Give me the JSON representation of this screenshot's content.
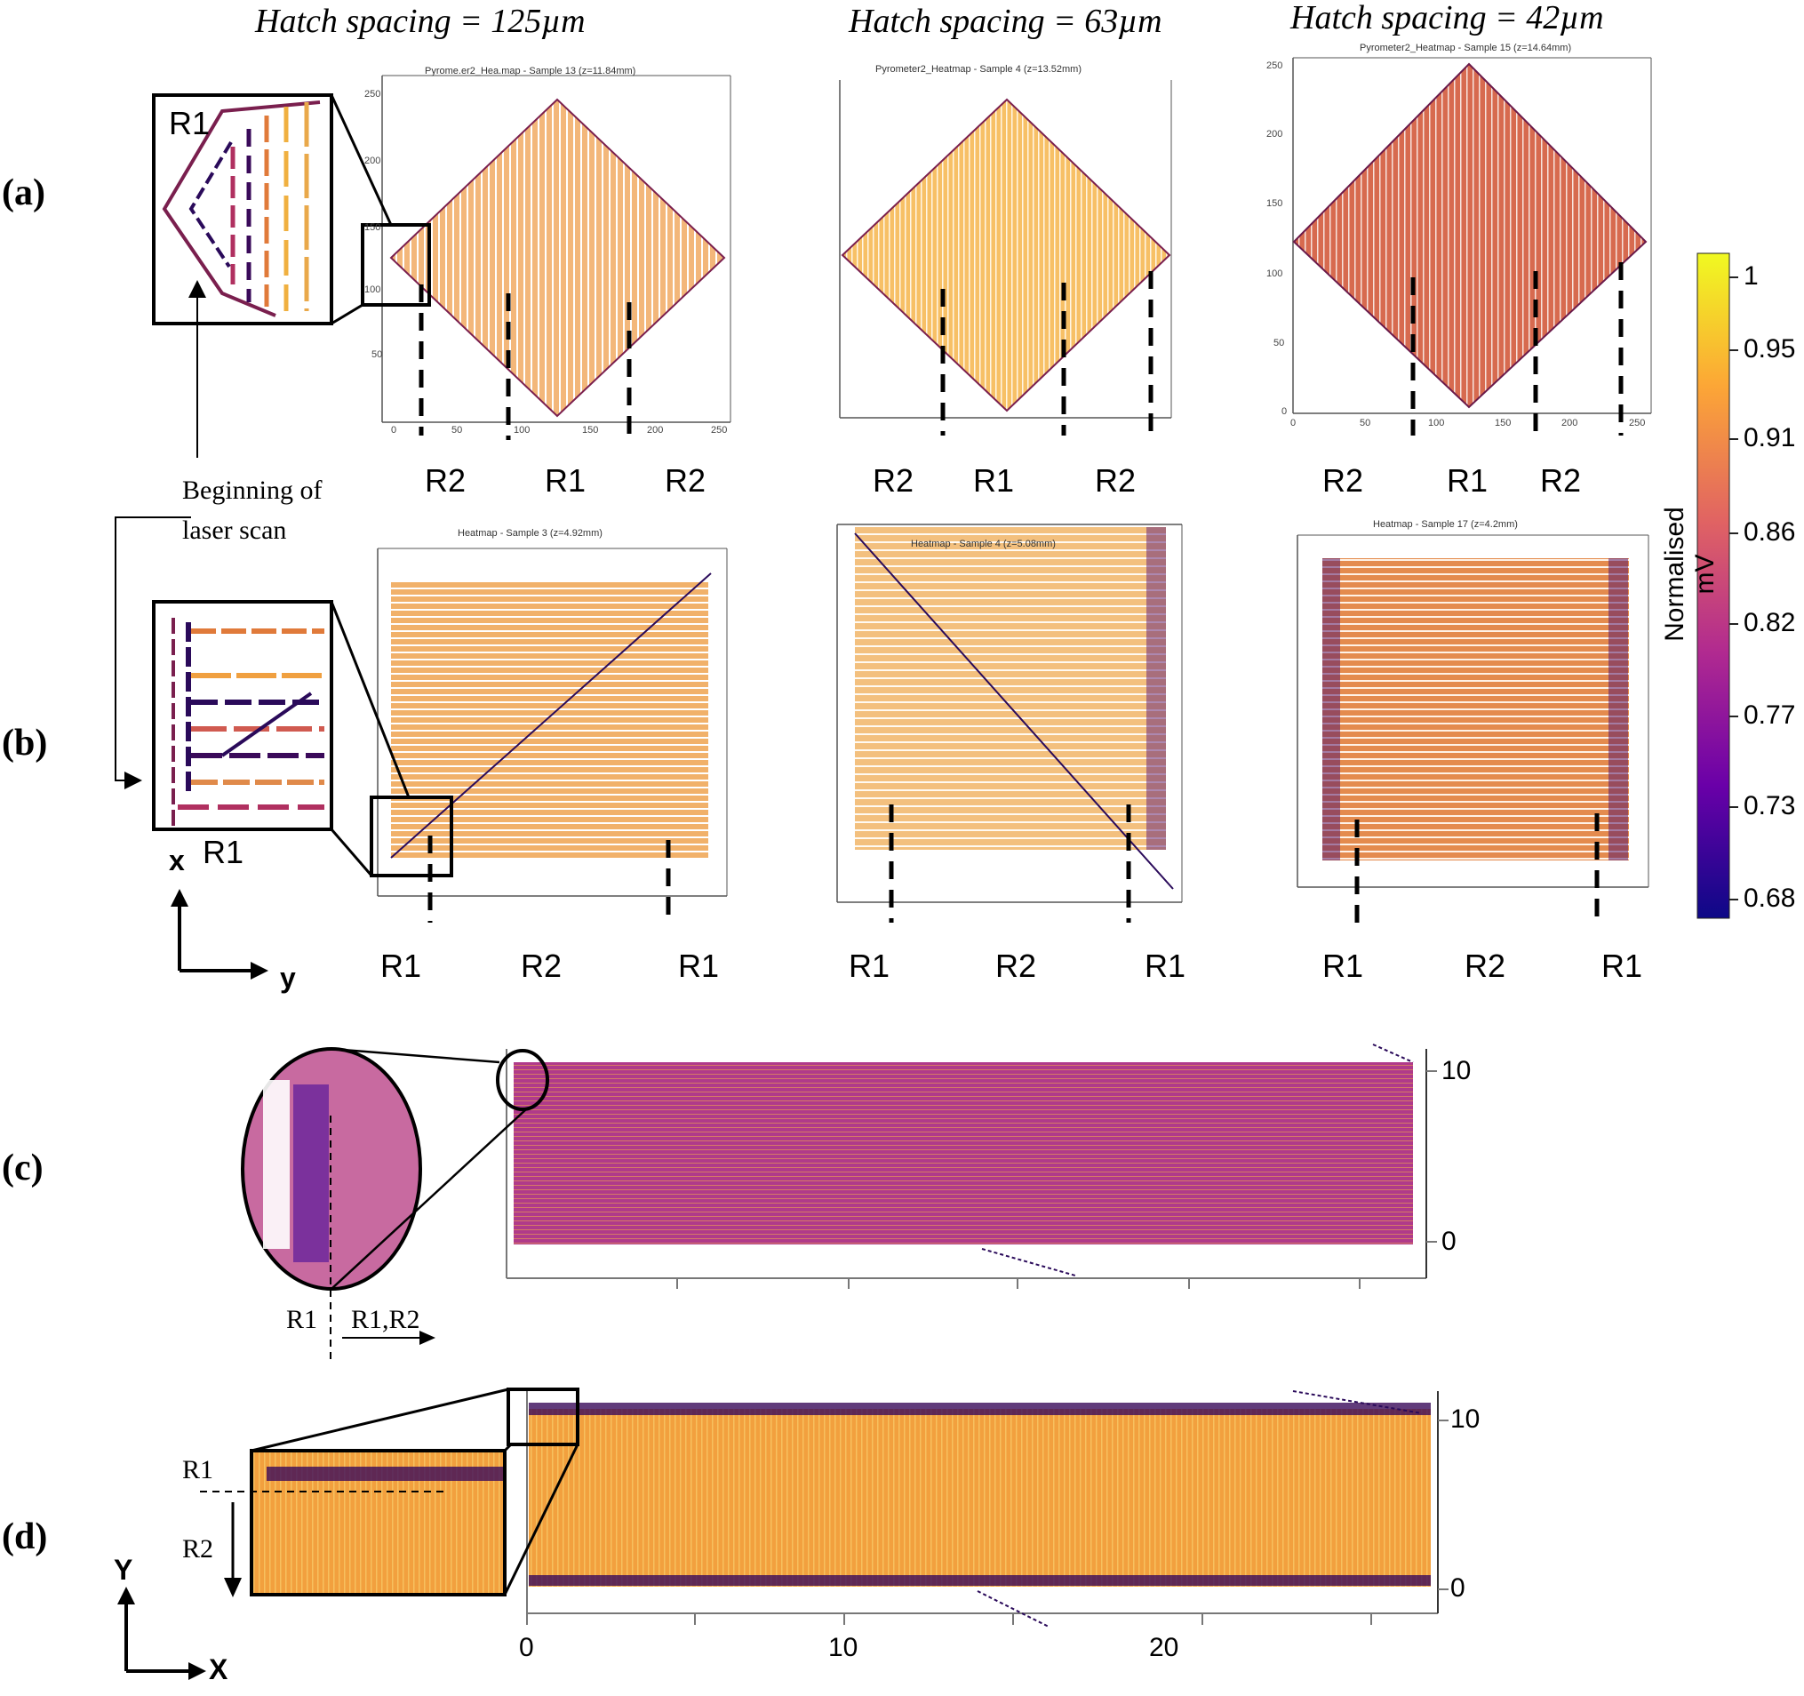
{
  "columns": [
    {
      "hatch": "Hatch spacing = 125µm"
    },
    {
      "hatch": "Hatch spacing = 63µm"
    },
    {
      "hatch": "Hatch spacing = 42µm"
    }
  ],
  "panels": {
    "a": "(a)",
    "b": "(b)",
    "c": "(c)",
    "d": "(d)"
  },
  "maps_a": [
    {
      "title": "Pyrome.er2_Hea.map - Sample 13 (z=11.84mm)",
      "regions": [
        "R2",
        "R1",
        "R2"
      ]
    },
    {
      "title": "Pyrometer2_Heatmap - Sample 4 (z=13.52mm)",
      "regions": [
        "R2",
        "R1",
        "R2"
      ]
    },
    {
      "title": "Pyrometer2_Heatmap - Sample 15 (z=14.64mm)",
      "regions": [
        "R2",
        "R1",
        "R2"
      ]
    }
  ],
  "maps_b": [
    {
      "title": "Heatmap - Sample 3 (z=4.92mm)",
      "regions": [
        "R1",
        "R2",
        "R1"
      ]
    },
    {
      "title": "Heatmap - Sample 4 (z=5.08mm)",
      "regions": [
        "R1",
        "R2",
        "R1"
      ]
    },
    {
      "title": "Heatmap - Sample 17 (z=4.2mm)",
      "regions": [
        "R1",
        "R2",
        "R1"
      ]
    }
  ],
  "axis_ticks_a_y": [
    "250",
    "200",
    "150",
    "100",
    "50",
    "0"
  ],
  "axis_ticks_a_x": [
    "0",
    "50",
    "100",
    "150",
    "200",
    "250"
  ],
  "inset_a_label": "R1",
  "inset_b_label": "R1",
  "scan_start_label_1": "Beginning of",
  "scan_start_label_2": "laser scan",
  "axes_b": {
    "x": "x",
    "y": "y"
  },
  "colorbar": {
    "label": "Normalised mV",
    "ticks": [
      "1",
      "0.95",
      "0.91",
      "0.86",
      "0.82",
      "0.77",
      "0.73",
      "0.68"
    ],
    "colors": [
      "#f0f921",
      "#fca636",
      "#e16462",
      "#b12a90",
      "#6a00a8",
      "#0d0887"
    ]
  },
  "panel_c": {
    "y_ticks": [
      "10",
      "0"
    ],
    "zoom_label_left": "R1",
    "zoom_label_right": "R1,R2"
  },
  "panel_d": {
    "y_ticks": [
      "10",
      "0"
    ],
    "x_ticks": [
      "0",
      "10",
      "20"
    ],
    "zoom_label_top": "R1",
    "zoom_label_bottom": "R2",
    "axes": {
      "x": "X",
      "y": "Y"
    }
  }
}
